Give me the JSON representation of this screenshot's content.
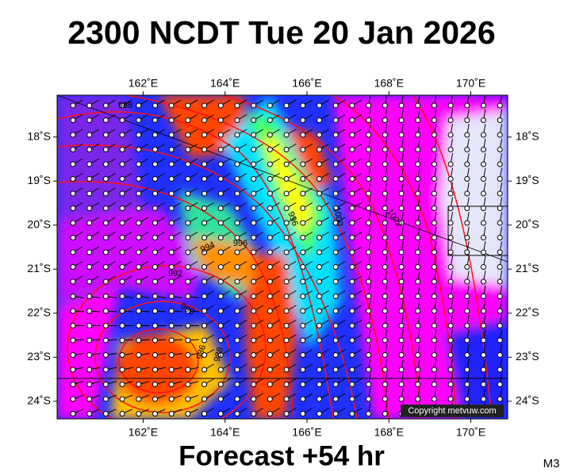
{
  "header": {
    "title": "2300 NCDT Tue 20 Jan 2026"
  },
  "map": {
    "lon_range": [
      159.9,
      170.9
    ],
    "lat_range": [
      -17.05,
      -24.4
    ],
    "lon_ticks": [
      {
        "value": 162,
        "label": "162˚E"
      },
      {
        "value": 164,
        "label": "164˚E"
      },
      {
        "value": 166,
        "label": "166˚E"
      },
      {
        "value": 168,
        "label": "168˚E"
      },
      {
        "value": 170,
        "label": "170˚E"
      }
    ],
    "lat_ticks": [
      {
        "value": -18,
        "label": "18˚S"
      },
      {
        "value": -19,
        "label": "19˚S"
      },
      {
        "value": -20,
        "label": "20˚S"
      },
      {
        "value": -21,
        "label": "21˚S"
      },
      {
        "value": -22,
        "label": "22˚S"
      },
      {
        "value": -23,
        "label": "23˚S"
      },
      {
        "value": -24,
        "label": "24˚S"
      }
    ],
    "isobar_labels": [
      "988",
      "996",
      "1000",
      "1002",
      "994",
      "996",
      "992",
      "990",
      "986",
      "988"
    ],
    "copyright": "Copyright metvuw.com"
  },
  "footer": {
    "forecast": "Forecast +54 hr",
    "code": "M3"
  }
}
